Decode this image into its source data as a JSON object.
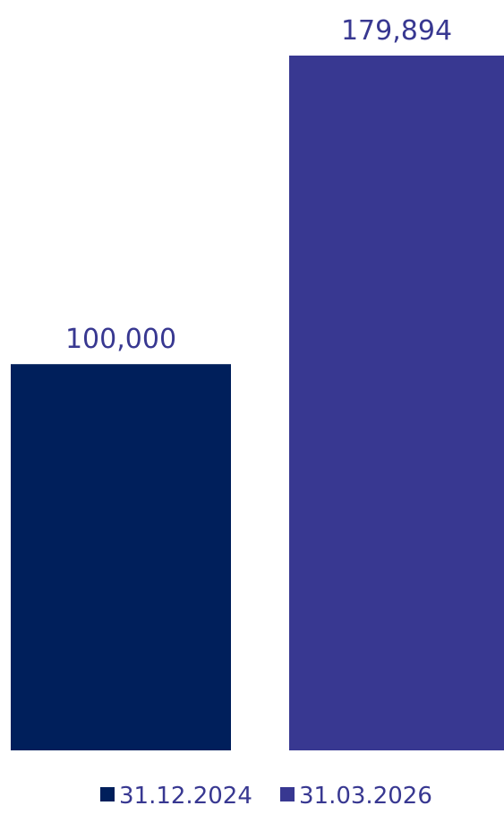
{
  "chart_data": {
    "type": "bar",
    "title": "",
    "xlabel": "",
    "ylabel": "",
    "ylim": [
      0,
      179894
    ],
    "grid": false,
    "legend_position": "bottom",
    "series": [
      {
        "name": "31.12.2024",
        "values": [
          100000
        ],
        "label": "100,000",
        "color": "#001f5b"
      },
      {
        "name": "31.03.2026",
        "values": [
          179894
        ],
        "label": "179,894",
        "color": "#383891"
      }
    ],
    "label_color": "#383891"
  }
}
